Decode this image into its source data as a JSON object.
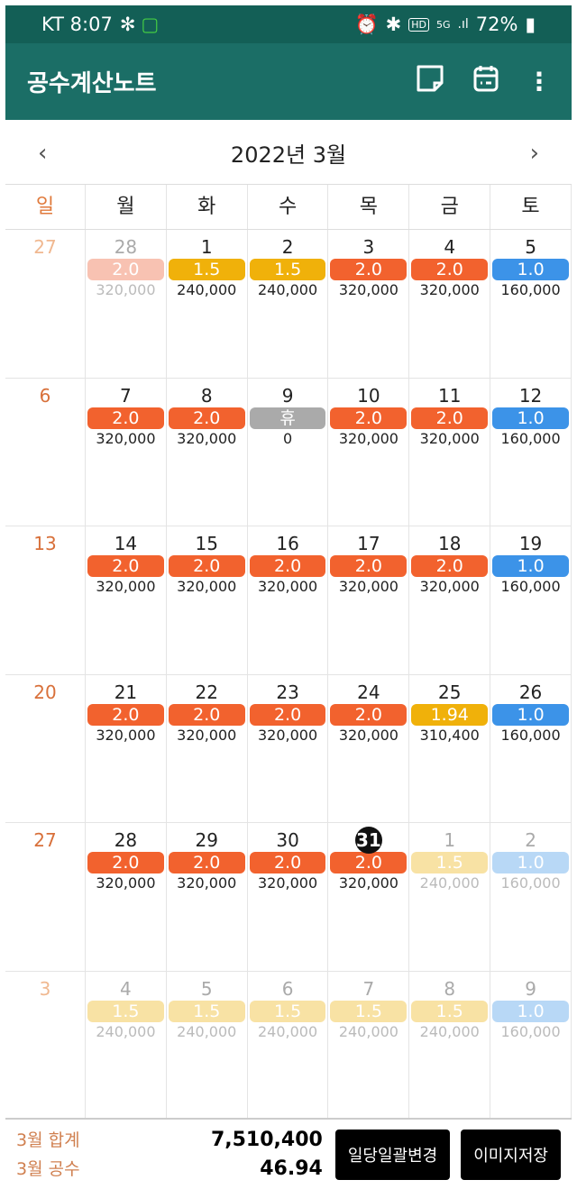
{
  "status": {
    "carrier_time": "KT 8:07",
    "battery": "72%"
  },
  "app": {
    "title": "공수계산노트"
  },
  "month": {
    "label": "2022년 3월",
    "prev": "‹",
    "next": "›"
  },
  "weekdays": [
    "일",
    "월",
    "화",
    "수",
    "목",
    "금",
    "토"
  ],
  "colors": {
    "orange": "#f2622e",
    "yellow": "#f0b10a",
    "blue": "#3c93e8",
    "gray": "#aaaaaa",
    "orange_faded": "#f8c2b2",
    "yellow_faded": "#f8e2a4",
    "blue_faded": "#b8d8f6"
  },
  "weeks": [
    {
      "sun": {
        "day": "27",
        "faded": true
      },
      "days": [
        {
          "day": "28",
          "value": "2.0",
          "amount": "320,000",
          "color": "orange",
          "faded": true
        },
        {
          "day": "1",
          "value": "1.5",
          "amount": "240,000",
          "color": "yellow"
        },
        {
          "day": "2",
          "value": "1.5",
          "amount": "240,000",
          "color": "yellow"
        },
        {
          "day": "3",
          "value": "2.0",
          "amount": "320,000",
          "color": "orange"
        },
        {
          "day": "4",
          "value": "2.0",
          "amount": "320,000",
          "color": "orange"
        },
        {
          "day": "5",
          "value": "1.0",
          "amount": "160,000",
          "color": "blue"
        }
      ]
    },
    {
      "sun": {
        "day": "6"
      },
      "days": [
        {
          "day": "7",
          "value": "2.0",
          "amount": "320,000",
          "color": "orange"
        },
        {
          "day": "8",
          "value": "2.0",
          "amount": "320,000",
          "color": "orange"
        },
        {
          "day": "9",
          "value": "휴",
          "amount": "0",
          "color": "gray"
        },
        {
          "day": "10",
          "value": "2.0",
          "amount": "320,000",
          "color": "orange"
        },
        {
          "day": "11",
          "value": "2.0",
          "amount": "320,000",
          "color": "orange"
        },
        {
          "day": "12",
          "value": "1.0",
          "amount": "160,000",
          "color": "blue"
        }
      ]
    },
    {
      "sun": {
        "day": "13"
      },
      "days": [
        {
          "day": "14",
          "value": "2.0",
          "amount": "320,000",
          "color": "orange"
        },
        {
          "day": "15",
          "value": "2.0",
          "amount": "320,000",
          "color": "orange"
        },
        {
          "day": "16",
          "value": "2.0",
          "amount": "320,000",
          "color": "orange"
        },
        {
          "day": "17",
          "value": "2.0",
          "amount": "320,000",
          "color": "orange"
        },
        {
          "day": "18",
          "value": "2.0",
          "amount": "320,000",
          "color": "orange"
        },
        {
          "day": "19",
          "value": "1.0",
          "amount": "160,000",
          "color": "blue"
        }
      ]
    },
    {
      "sun": {
        "day": "20"
      },
      "days": [
        {
          "day": "21",
          "value": "2.0",
          "amount": "320,000",
          "color": "orange"
        },
        {
          "day": "22",
          "value": "2.0",
          "amount": "320,000",
          "color": "orange"
        },
        {
          "day": "23",
          "value": "2.0",
          "amount": "320,000",
          "color": "orange"
        },
        {
          "day": "24",
          "value": "2.0",
          "amount": "320,000",
          "color": "orange"
        },
        {
          "day": "25",
          "value": "1.94",
          "amount": "310,400",
          "color": "yellow"
        },
        {
          "day": "26",
          "value": "1.0",
          "amount": "160,000",
          "color": "blue"
        }
      ]
    },
    {
      "sun": {
        "day": "27"
      },
      "days": [
        {
          "day": "28",
          "value": "2.0",
          "amount": "320,000",
          "color": "orange"
        },
        {
          "day": "29",
          "value": "2.0",
          "amount": "320,000",
          "color": "orange"
        },
        {
          "day": "30",
          "value": "2.0",
          "amount": "320,000",
          "color": "orange"
        },
        {
          "day": "31",
          "value": "2.0",
          "amount": "320,000",
          "color": "orange",
          "today": true
        },
        {
          "day": "1",
          "value": "1.5",
          "amount": "240,000",
          "color": "yellow",
          "faded": true
        },
        {
          "day": "2",
          "value": "1.0",
          "amount": "160,000",
          "color": "blue",
          "faded": true
        }
      ]
    },
    {
      "sun": {
        "day": "3",
        "faded": true
      },
      "days": [
        {
          "day": "4",
          "value": "1.5",
          "amount": "240,000",
          "color": "yellow",
          "faded": true
        },
        {
          "day": "5",
          "value": "1.5",
          "amount": "240,000",
          "color": "yellow",
          "faded": true
        },
        {
          "day": "6",
          "value": "1.5",
          "amount": "240,000",
          "color": "yellow",
          "faded": true
        },
        {
          "day": "7",
          "value": "1.5",
          "amount": "240,000",
          "color": "yellow",
          "faded": true
        },
        {
          "day": "8",
          "value": "1.5",
          "amount": "240,000",
          "color": "yellow",
          "faded": true
        },
        {
          "day": "9",
          "value": "1.0",
          "amount": "160,000",
          "color": "blue",
          "faded": true
        }
      ]
    }
  ],
  "footer": {
    "total_label": "3월 합계",
    "total_value": "7,510,400",
    "count_label": "3월 공수",
    "count_value": "46.94",
    "bulk_change": "일당일괄변경",
    "save_image": "이미지저장"
  }
}
